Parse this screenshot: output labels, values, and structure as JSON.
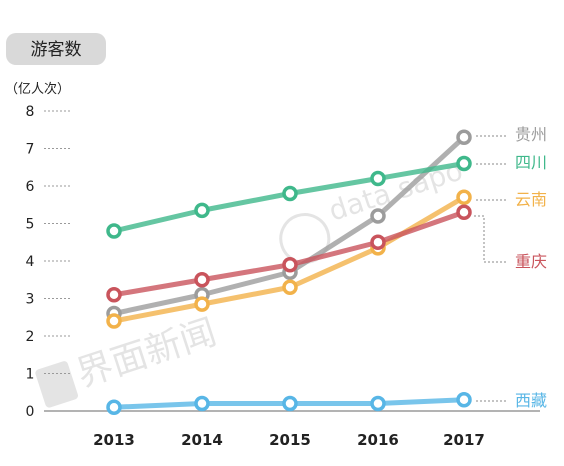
{
  "chart_data": {
    "type": "line",
    "title": "游客数",
    "unit_label": "（亿人次）",
    "categories": [
      "2013",
      "2014",
      "2015",
      "2016",
      "2017"
    ],
    "yticks": [
      "0",
      "1",
      "2",
      "3",
      "4",
      "5",
      "6",
      "7",
      "8"
    ],
    "ylim": [
      0,
      8
    ],
    "grid": false,
    "series": [
      {
        "name": "贵州",
        "color": "#9c9c9c",
        "values": [
          2.6,
          3.1,
          3.7,
          5.2,
          7.3
        ]
      },
      {
        "name": "四川",
        "color": "#3fb88b",
        "values": [
          4.8,
          5.35,
          5.8,
          6.2,
          6.6
        ]
      },
      {
        "name": "云南",
        "color": "#f2b24a",
        "values": [
          2.4,
          2.85,
          3.3,
          4.35,
          5.7
        ]
      },
      {
        "name": "重庆",
        "color": "#c9545c",
        "values": [
          3.1,
          3.5,
          3.9,
          4.5,
          5.3
        ]
      },
      {
        "name": "西藏",
        "color": "#58b6e6",
        "values": [
          0.1,
          0.2,
          0.2,
          0.2,
          0.3
        ]
      }
    ]
  }
}
